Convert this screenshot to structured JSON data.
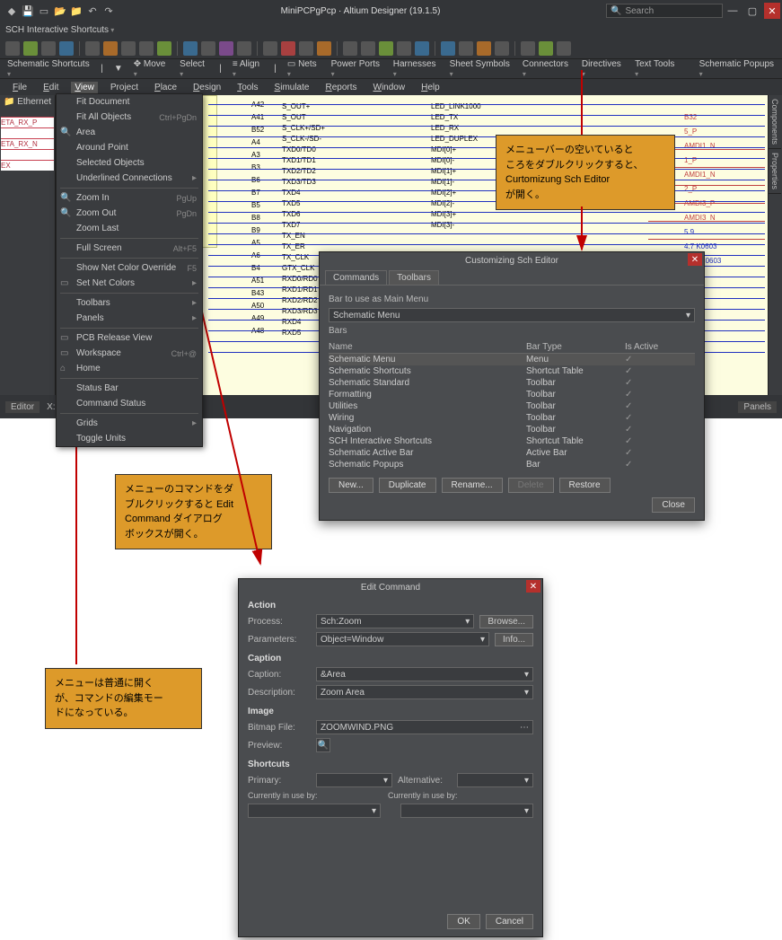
{
  "titlebar": {
    "title": "MiniPCPgPcp · Altium Designer (19.1.5)",
    "search_placeholder": "Search"
  },
  "row2": {
    "label": "SCH Interactive Shortcuts"
  },
  "tbrow": {
    "items": [
      "Schematic Shortcuts",
      "Move",
      "Select",
      "Align",
      "Nets",
      "Power Ports",
      "Harnesses",
      "Sheet Symbols",
      "Connectors",
      "Directives",
      "Text Tools"
    ],
    "right": "Schematic Popups"
  },
  "menubar": [
    "File",
    "Edit",
    "View",
    "Project",
    "Place",
    "Design",
    "Tools",
    "Simulate",
    "Reports",
    "Window",
    "Help"
  ],
  "left_tab": "Ethernet",
  "left_pins": [
    "ETA_RX_P",
    "",
    "ETA_RX_N",
    "",
    "EX"
  ],
  "dropdown": [
    {
      "label": "Fit Document",
      "ico": ""
    },
    {
      "label": "Fit All Objects",
      "sc": "Ctrl+PgDn",
      "ico": ""
    },
    {
      "label": "Area",
      "ico": "🔍"
    },
    {
      "label": "Around Point",
      "ico": ""
    },
    {
      "label": "Selected Objects",
      "ico": ""
    },
    {
      "label": "Underlined Connections",
      "arr": "▸",
      "ico": ""
    },
    {
      "sep": true
    },
    {
      "label": "Zoom In",
      "sc": "PgUp",
      "ico": "🔍"
    },
    {
      "label": "Zoom Out",
      "sc": "PgDn",
      "ico": "🔍"
    },
    {
      "label": "Zoom Last",
      "ico": ""
    },
    {
      "sep": true
    },
    {
      "label": "Full Screen",
      "sc": "Alt+F5",
      "ico": ""
    },
    {
      "sep": true
    },
    {
      "label": "Show Net Color Override",
      "sc": "F5",
      "ico": ""
    },
    {
      "label": "Set Net Colors",
      "arr": "▸",
      "ico": "▭"
    },
    {
      "sep": true
    },
    {
      "label": "Toolbars",
      "arr": "▸",
      "ico": ""
    },
    {
      "label": "Panels",
      "arr": "▸",
      "ico": ""
    },
    {
      "sep": true
    },
    {
      "label": "PCB Release View",
      "ico": "▭"
    },
    {
      "label": "Workspace",
      "sc": "Ctrl+@",
      "ico": "▭"
    },
    {
      "label": "Home",
      "ico": "⌂"
    },
    {
      "sep": true
    },
    {
      "label": "Status Bar",
      "ico": ""
    },
    {
      "label": "Command Status",
      "ico": ""
    },
    {
      "sep": true
    },
    {
      "label": "Grids",
      "arr": "▸",
      "ico": ""
    },
    {
      "label": "Toggle Units",
      "ico": ""
    }
  ],
  "canvas_refs": [
    "A42",
    "A41",
    "B52",
    "A4",
    "A3",
    "B3",
    "B6",
    "B7",
    "B5",
    "B8",
    "B9",
    "A5",
    "A6",
    "B4",
    "A51",
    "B43",
    "A50",
    "A49",
    "A48"
  ],
  "canvas_lbls_left": [
    "RXC_P",
    "RXC_N",
    "A43"
  ],
  "canvas_lbls_mid": [
    "S_OUT+",
    "S_OUT",
    "S_CLK+/SD+",
    "S_CLK-/SD-",
    "TXD0/TD0",
    "TXD1/TD1",
    "TXD2/TD2",
    "TXD3/TD3",
    "TXD4",
    "TXD5",
    "TXD6",
    "TXD7",
    "TX_EN",
    "TX_ER",
    "TX_CLK",
    "GTX_CLK",
    "RXD0/RD0",
    "RXD1/RD1",
    "RXD2/RD2",
    "RXD3/RD3",
    "RXD4",
    "RXD5"
  ],
  "canvas_lbls_right": [
    "LED_LINK1000",
    "LED_TX",
    "LED_RX",
    "LED_DUPLEX",
    "MDI[0]+",
    "MDI[0]-",
    "MDI[1]+",
    "MDI[1]-",
    "MDI[2]+",
    "MDI[2]-",
    "MDI[3]+",
    "MDI[3]-"
  ],
  "canvas_far": [
    "B32",
    "5_P",
    "AMDI1_N",
    "1_P",
    "AMDI1_N",
    "2_P",
    "AMDI3_P",
    "AMDI3_N",
    "5.9",
    "4.7 K0603",
    "50.9 R0603"
  ],
  "right_tabs": [
    "Components",
    "Properties"
  ],
  "status": {
    "editor": "Editor",
    "coord": "X:7000.000mil",
    "panels": "Panels"
  },
  "cust": {
    "title": "Customizing Sch Editor",
    "tabs": [
      "Commands",
      "Toolbars"
    ],
    "bar_label": "Bar to use as Main Menu",
    "bar_value": "Schematic Menu",
    "bars_label": "Bars",
    "hdr": {
      "c1": "Name",
      "c2": "Bar Type",
      "c3": "Is Active"
    },
    "rows": [
      {
        "n": "Schematic Menu",
        "t": "Menu",
        "a": "✓"
      },
      {
        "n": "Schematic Shortcuts",
        "t": "Shortcut Table",
        "a": "✓"
      },
      {
        "n": "Schematic Standard",
        "t": "Toolbar",
        "a": "✓"
      },
      {
        "n": "Formatting",
        "t": "Toolbar",
        "a": "✓"
      },
      {
        "n": "Utilities",
        "t": "Toolbar",
        "a": "✓"
      },
      {
        "n": "Wiring",
        "t": "Toolbar",
        "a": "✓"
      },
      {
        "n": "Navigation",
        "t": "Toolbar",
        "a": "✓"
      },
      {
        "n": "SCH Interactive Shortcuts",
        "t": "Shortcut Table",
        "a": "✓"
      },
      {
        "n": "Schematic Active Bar",
        "t": "Active Bar",
        "a": "✓"
      },
      {
        "n": "Schematic Popups",
        "t": "Bar",
        "a": "✓"
      }
    ],
    "btns": {
      "new": "New...",
      "dup": "Duplicate",
      "ren": "Rename...",
      "del": "Delete",
      "res": "Restore"
    },
    "close": "Close"
  },
  "edc": {
    "title": "Edit Command",
    "sec_action": "Action",
    "process": "Process:",
    "process_v": "Sch:Zoom",
    "browse": "Browse...",
    "params": "Parameters:",
    "params_v": "Object=Window",
    "info": "Info...",
    "sec_caption": "Caption",
    "caption": "Caption:",
    "caption_v": "&Area",
    "desc": "Description:",
    "desc_v": "Zoom Area",
    "sec_image": "Image",
    "bmp": "Bitmap File:",
    "bmp_v": "ZOOMWIND.PNG",
    "preview": "Preview:",
    "sec_sc": "Shortcuts",
    "primary": "Primary:",
    "alt": "Alternative:",
    "inuse": "Currently in use by:",
    "ok": "OK",
    "cancel": "Cancel"
  },
  "callouts": {
    "c1": "メニューバーの空いていると\nころをダブルクリックすると、\nCurtomizung Sch Editor\nが開く。",
    "c2": "メニューのコマンドをダ\nブルクリックすると Edit\nCommand ダイアログ\nボックスが開く。",
    "c3": "メニューは普通に開く\nが、コマンドの編集モー\nドになっている。"
  }
}
